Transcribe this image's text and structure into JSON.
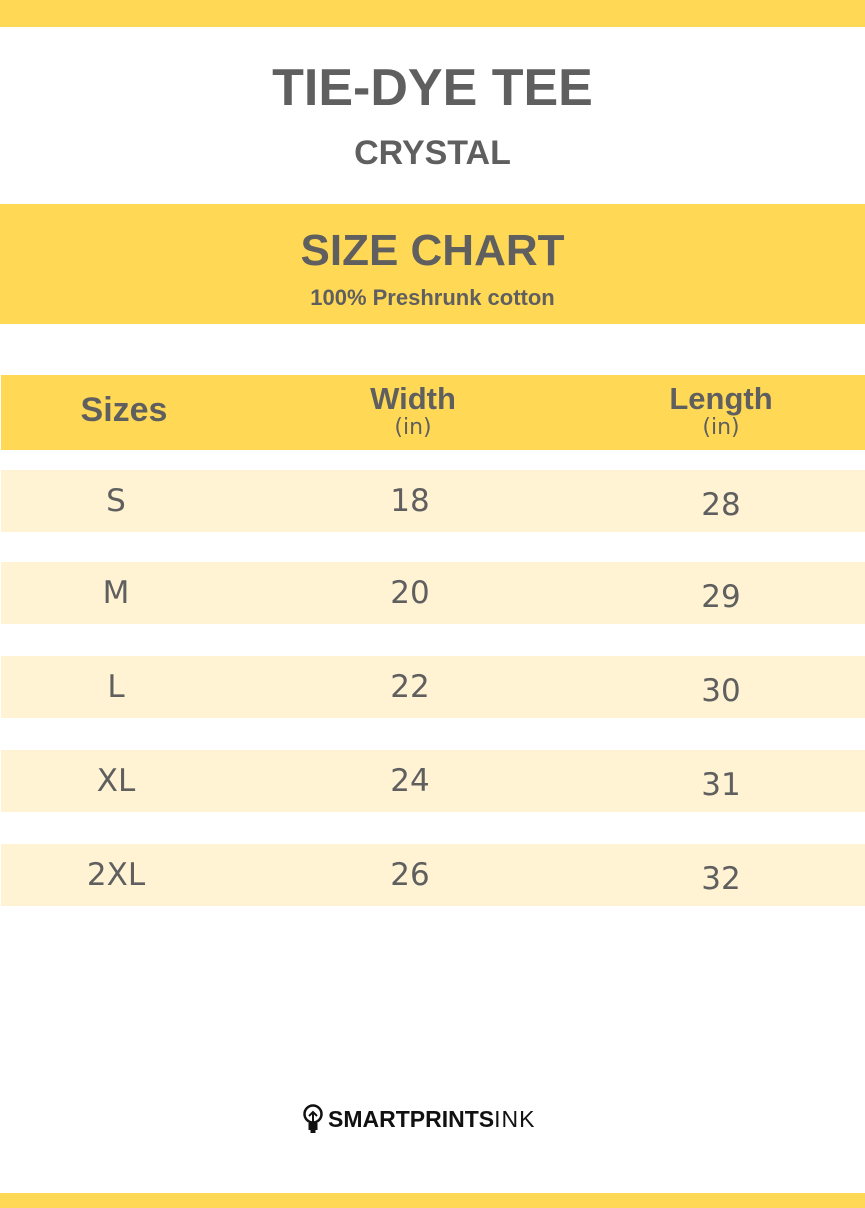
{
  "title": "TIE-DYE TEE",
  "subtitle": "CRYSTAL",
  "banner": {
    "heading": "SIZE CHART",
    "material": "100% Preshrunk cotton"
  },
  "table": {
    "headers": [
      {
        "label": "Sizes",
        "unit": ""
      },
      {
        "label": "Width",
        "unit": "(in)"
      },
      {
        "label": "Length",
        "unit": "(in)"
      }
    ],
    "rows": [
      {
        "size": "S",
        "width": "18",
        "length": "28"
      },
      {
        "size": "M",
        "width": "20",
        "length": "29"
      },
      {
        "size": "L",
        "width": "22",
        "length": "30"
      },
      {
        "size": "XL",
        "width": "24",
        "length": "31"
      },
      {
        "size": "2XL",
        "width": "26",
        "length": "32"
      }
    ]
  },
  "brand": {
    "bold": "SMARTPRINTS",
    "light": "INK",
    "icon": "lightbulb-icon"
  },
  "colors": {
    "accent": "#FFD955",
    "row": "#FFF3D3",
    "text": "#5f5f5f"
  }
}
